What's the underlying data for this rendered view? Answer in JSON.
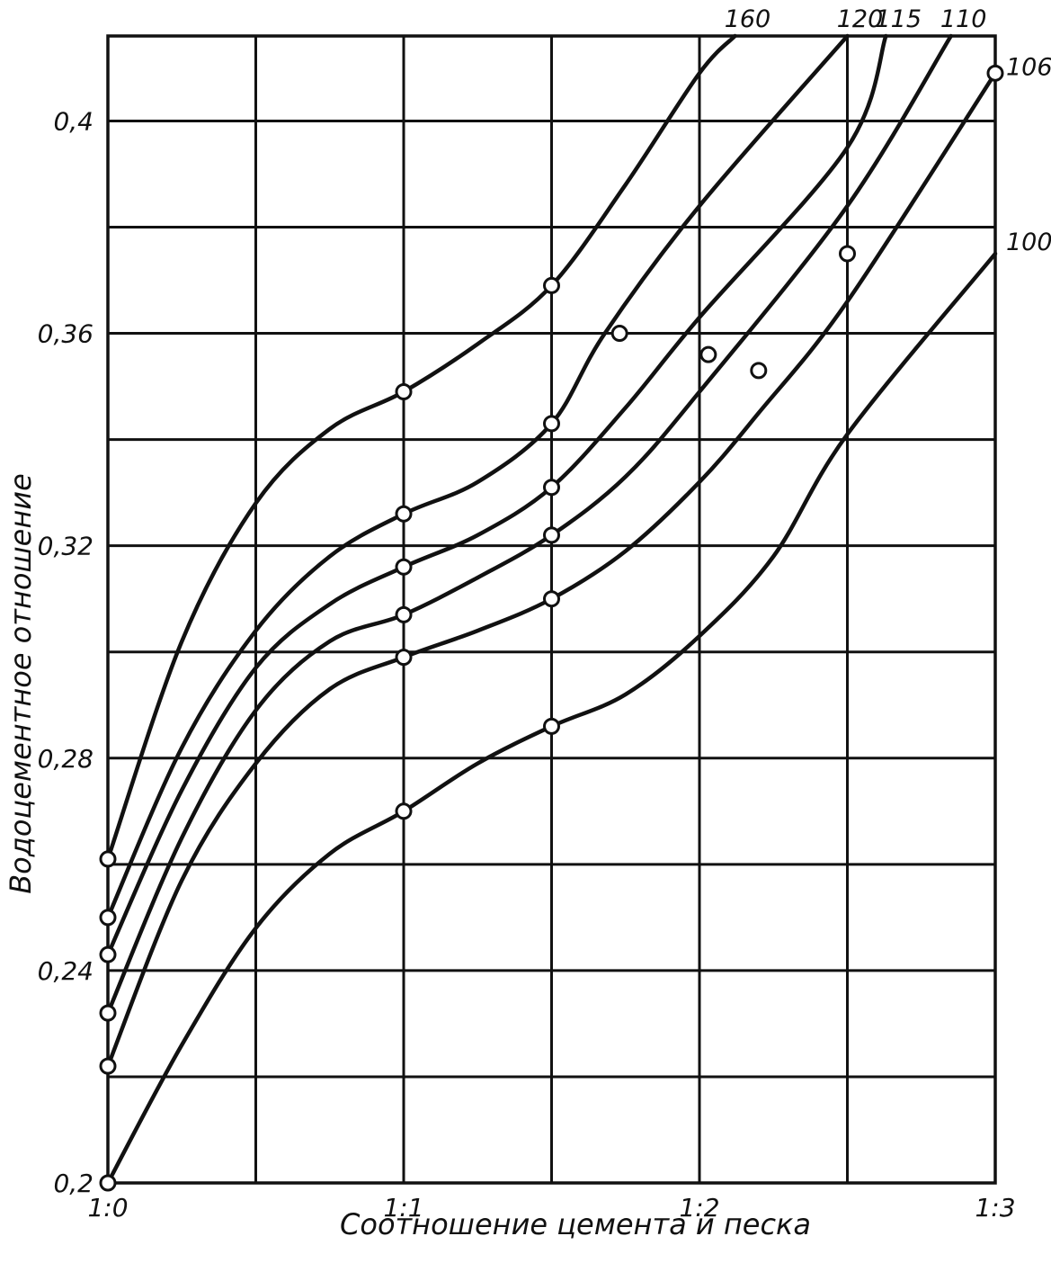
{
  "chart_data": {
    "type": "line",
    "title": "",
    "xlabel": "Соотношение цемента и песка",
    "ylabel": "Водоцементное отношение",
    "x_ticks": [
      {
        "value": 0,
        "label": "1:0"
      },
      {
        "value": 1,
        "label": "1:1"
      },
      {
        "value": 2,
        "label": "1:2"
      },
      {
        "value": 3,
        "label": "1:3"
      }
    ],
    "y_ticks": [
      {
        "value": 0.2,
        "label": "0,2"
      },
      {
        "value": 0.24,
        "label": "0,24"
      },
      {
        "value": 0.28,
        "label": "0,28"
      },
      {
        "value": 0.32,
        "label": "0,32"
      },
      {
        "value": 0.36,
        "label": "0,36"
      },
      {
        "value": 0.4,
        "label": "0,4"
      }
    ],
    "xlim": [
      0,
      3
    ],
    "ylim": [
      0.2,
      0.416
    ],
    "grid": {
      "x_step": 0.5,
      "y_step": 0.02
    },
    "series": [
      {
        "name": "160",
        "points": [
          [
            0,
            0.261
          ],
          [
            0.25,
            0.302
          ],
          [
            0.5,
            0.328
          ],
          [
            0.75,
            0.342
          ],
          [
            1,
            0.349
          ],
          [
            1.25,
            0.358
          ],
          [
            1.5,
            0.369
          ],
          [
            1.75,
            0.388
          ],
          [
            2,
            0.409
          ],
          [
            2.12,
            0.416
          ]
        ],
        "markers": [
          [
            0,
            0.261
          ],
          [
            1,
            0.349
          ],
          [
            1.5,
            0.369
          ]
        ]
      },
      {
        "name": "120",
        "points": [
          [
            0,
            0.25
          ],
          [
            0.25,
            0.282
          ],
          [
            0.5,
            0.304
          ],
          [
            0.75,
            0.318
          ],
          [
            1,
            0.326
          ],
          [
            1.25,
            0.332
          ],
          [
            1.5,
            0.343
          ],
          [
            1.68,
            0.36
          ],
          [
            2,
            0.384
          ],
          [
            2.5,
            0.416
          ]
        ],
        "markers": [
          [
            0,
            0.25
          ],
          [
            1,
            0.326
          ],
          [
            1.5,
            0.343
          ],
          [
            1.73,
            0.36
          ]
        ]
      },
      {
        "name": "115",
        "points": [
          [
            0,
            0.243
          ],
          [
            0.25,
            0.274
          ],
          [
            0.5,
            0.297
          ],
          [
            0.75,
            0.309
          ],
          [
            1,
            0.316
          ],
          [
            1.25,
            0.322
          ],
          [
            1.5,
            0.331
          ],
          [
            1.75,
            0.346
          ],
          [
            2,
            0.363
          ],
          [
            2.5,
            0.395
          ],
          [
            2.63,
            0.416
          ]
        ],
        "markers": [
          [
            0,
            0.243
          ],
          [
            1,
            0.316
          ],
          [
            1.5,
            0.331
          ],
          [
            2.03,
            0.356
          ]
        ]
      },
      {
        "name": "110",
        "points": [
          [
            0,
            0.232
          ],
          [
            0.25,
            0.265
          ],
          [
            0.5,
            0.289
          ],
          [
            0.75,
            0.302
          ],
          [
            1,
            0.307
          ],
          [
            1.25,
            0.314
          ],
          [
            1.5,
            0.322
          ],
          [
            1.75,
            0.333
          ],
          [
            2,
            0.349
          ],
          [
            2.5,
            0.384
          ],
          [
            2.85,
            0.416
          ]
        ],
        "markers": [
          [
            0,
            0.232
          ],
          [
            1,
            0.307
          ],
          [
            1.5,
            0.322
          ]
        ]
      },
      {
        "name": "106",
        "points": [
          [
            0,
            0.222
          ],
          [
            0.25,
            0.257
          ],
          [
            0.5,
            0.279
          ],
          [
            0.75,
            0.293
          ],
          [
            1,
            0.299
          ],
          [
            1.25,
            0.304
          ],
          [
            1.5,
            0.31
          ],
          [
            1.75,
            0.319
          ],
          [
            2,
            0.332
          ],
          [
            2.2,
            0.345
          ],
          [
            2.5,
            0.366
          ],
          [
            3,
            0.409
          ]
        ],
        "markers": [
          [
            0,
            0.222
          ],
          [
            1,
            0.299
          ],
          [
            1.5,
            0.31
          ],
          [
            2.2,
            0.353
          ],
          [
            2.5,
            0.375
          ],
          [
            3,
            0.409
          ]
        ]
      },
      {
        "name": "100",
        "points": [
          [
            0,
            0.2
          ],
          [
            0.25,
            0.226
          ],
          [
            0.5,
            0.248
          ],
          [
            0.75,
            0.262
          ],
          [
            1,
            0.27
          ],
          [
            1.25,
            0.279
          ],
          [
            1.5,
            0.286
          ],
          [
            1.75,
            0.292
          ],
          [
            2,
            0.303
          ],
          [
            2.25,
            0.318
          ],
          [
            2.5,
            0.341
          ],
          [
            3,
            0.375
          ]
        ],
        "markers": [
          [
            0,
            0.2
          ],
          [
            1,
            0.27
          ],
          [
            1.5,
            0.286
          ]
        ]
      }
    ],
    "legend": "inline-labels-at-line-ends"
  }
}
